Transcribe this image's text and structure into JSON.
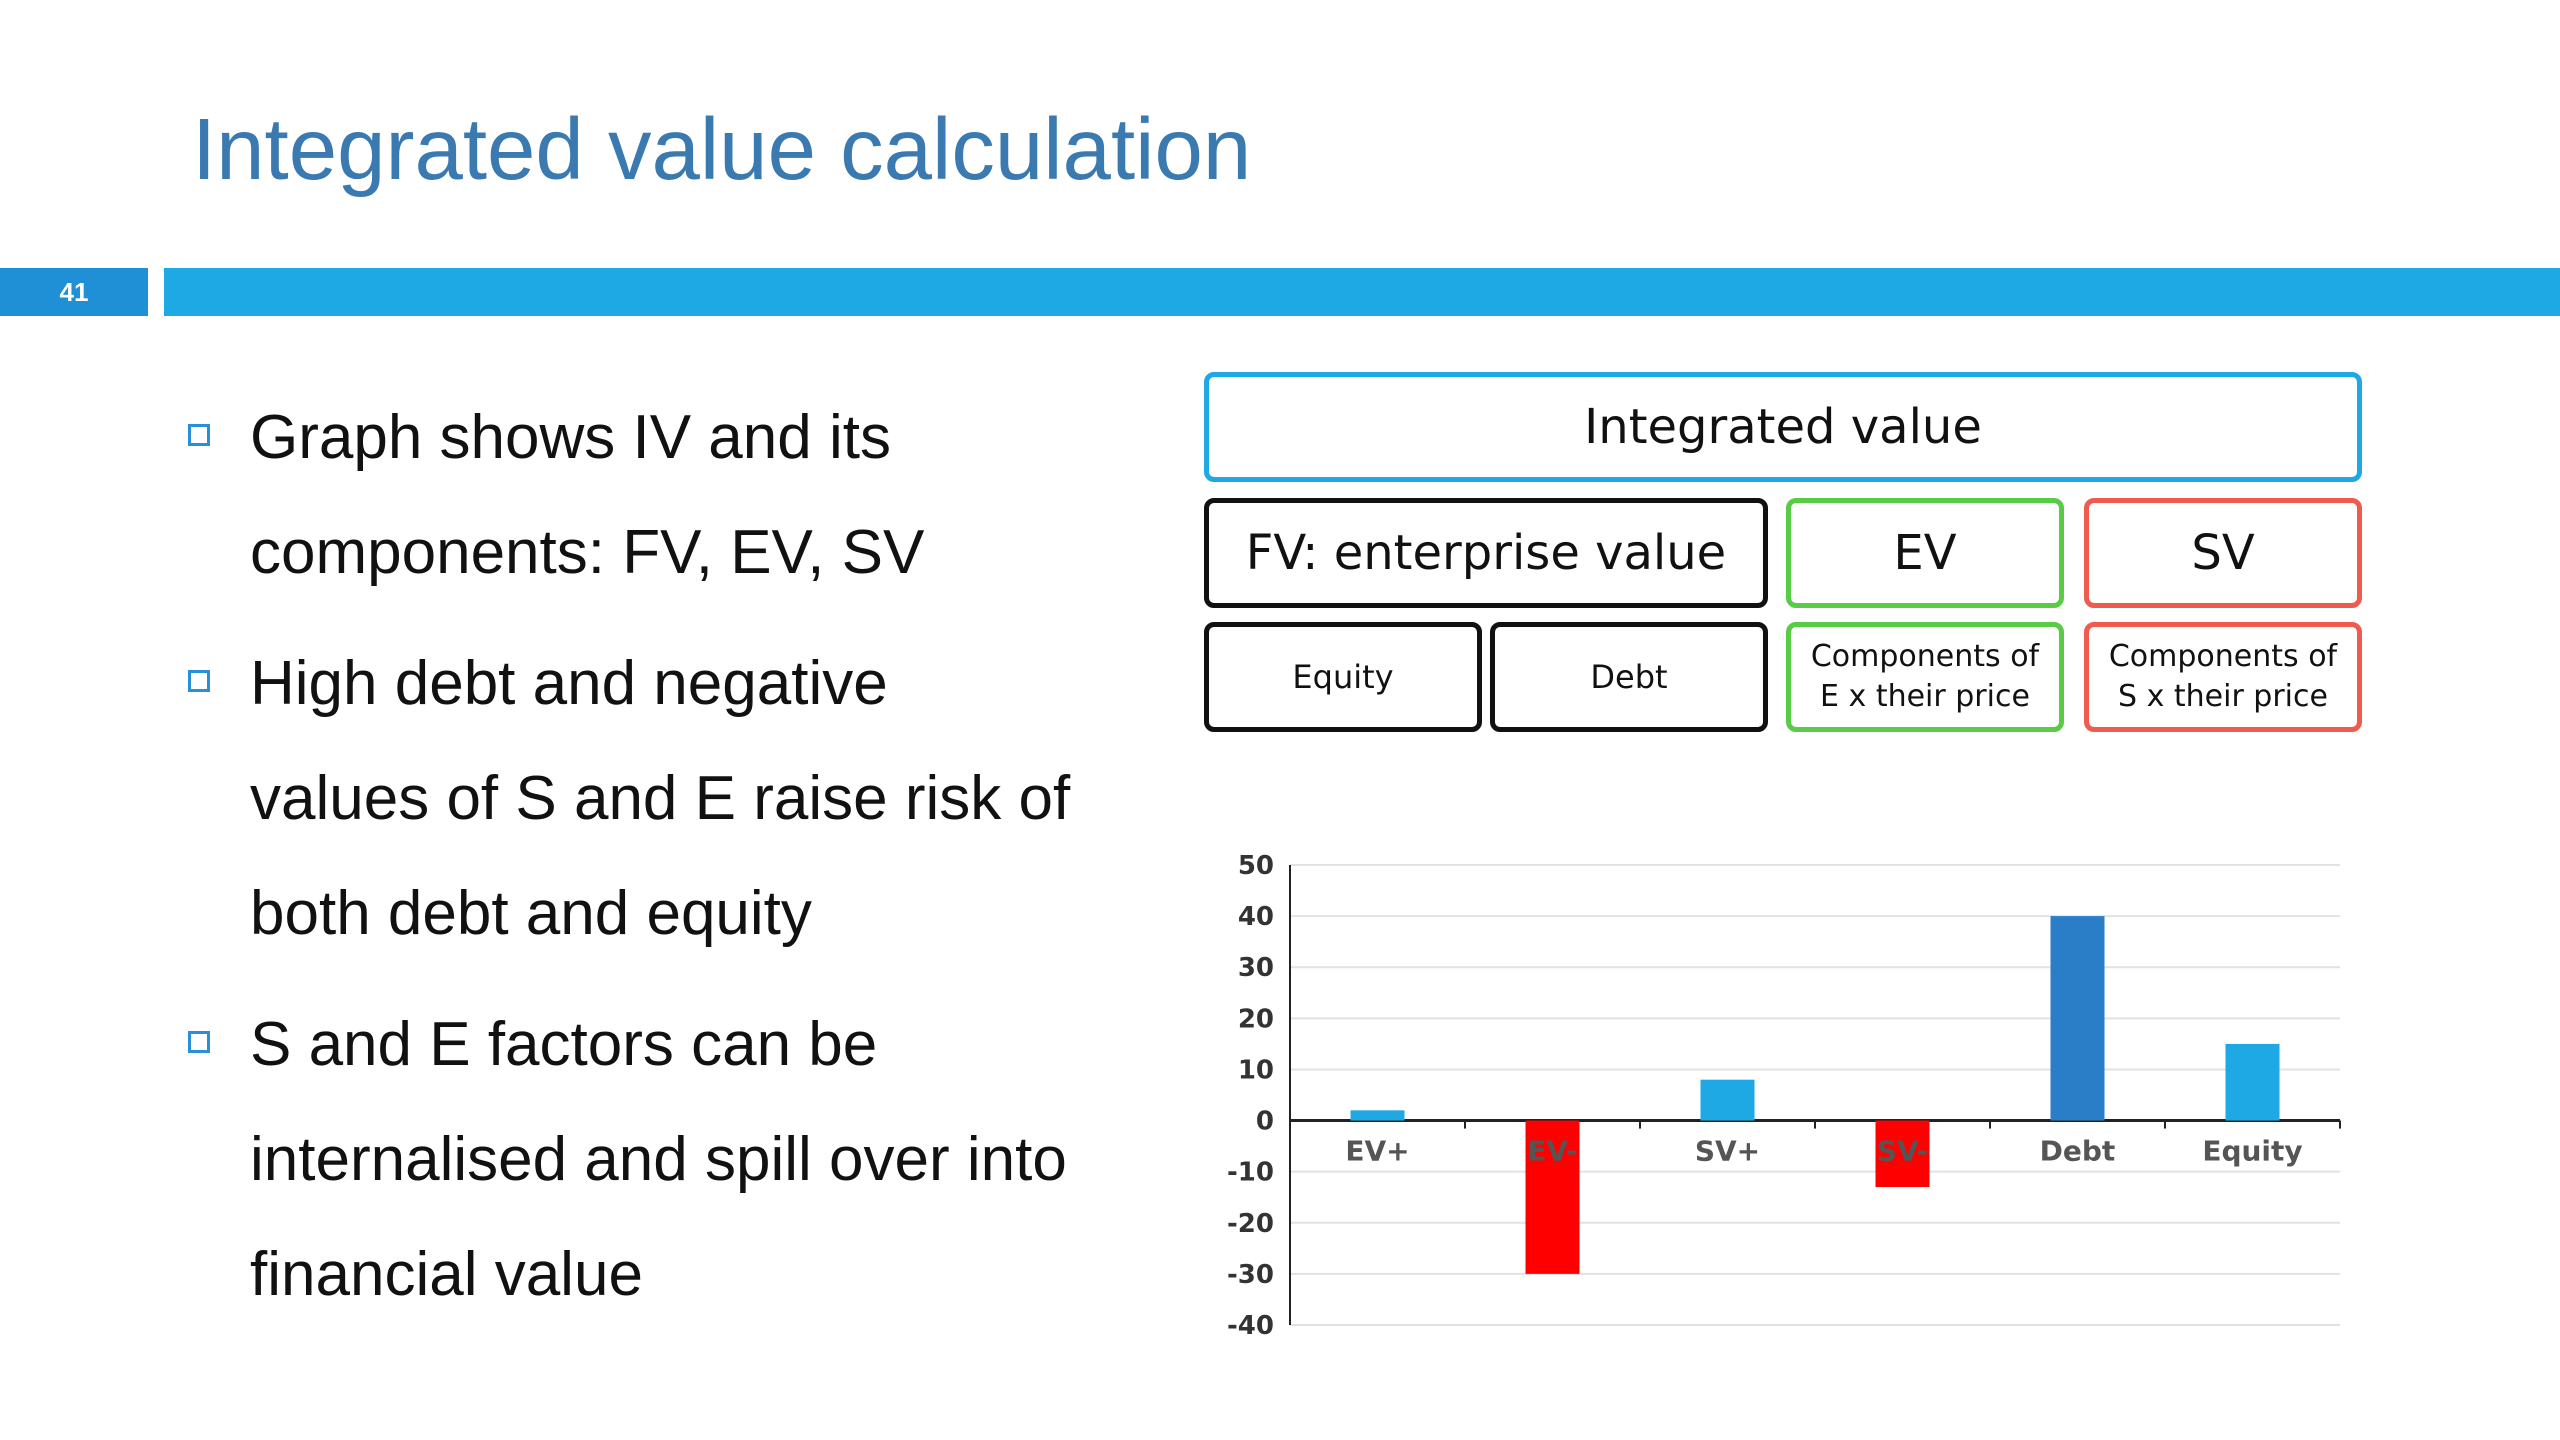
{
  "slide": {
    "title": "Integrated value calculation",
    "number": "41"
  },
  "bullets": [
    "Graph shows IV and its components: FV, EV, SV",
    "High debt and negative values of S and E raise risk of both debt and equity",
    "S and E factors can be internalised and spill over into financial value"
  ],
  "diagram": {
    "integrated_value": "Integrated value",
    "fv": "FV: enterprise value",
    "ev": "EV",
    "sv": "SV",
    "equity": "Equity",
    "debt": "Debt",
    "components_e": "Components of E x their price",
    "components_s": "Components of S x their price"
  },
  "colors": {
    "accent": "#1ea8e4",
    "title": "#3a7ab0",
    "green": "#59cc46",
    "red_box": "#f05b50",
    "bar_light": "#1ea8e4",
    "bar_dark": "#2a7ec8",
    "bar_red": "#ff0000"
  },
  "chart_data": {
    "type": "bar",
    "categories": [
      "EV+",
      "EV-",
      "SV+",
      "SV-",
      "Debt",
      "Equity"
    ],
    "values": [
      2,
      -30,
      8,
      -13,
      40,
      15
    ],
    "bar_colors": [
      "#1ea8e4",
      "#ff0000",
      "#1ea8e4",
      "#ff0000",
      "#2a7ec8",
      "#1ea8e4"
    ],
    "yticks": [
      50,
      40,
      30,
      20,
      10,
      0,
      -10,
      -20,
      -30,
      -40
    ],
    "ylim": [
      -40,
      50
    ],
    "grid": true,
    "legend": "none"
  }
}
